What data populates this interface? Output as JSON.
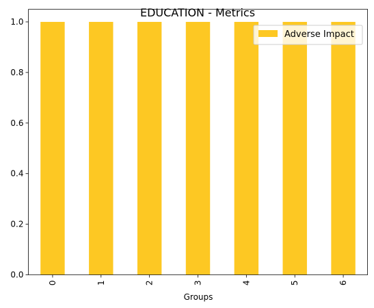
{
  "chart_data": {
    "type": "bar",
    "title": "EDUCATION - Metrics",
    "xlabel": "Groups",
    "ylabel": "",
    "categories": [
      "0",
      "1",
      "2",
      "3",
      "4",
      "5",
      "6"
    ],
    "series": [
      {
        "name": "Adverse Impact",
        "values": [
          1.0,
          1.0,
          1.0,
          1.0,
          1.0,
          1.0,
          1.0
        ]
      }
    ],
    "ylim": [
      0,
      1.05
    ],
    "yticks": [
      "0.0",
      "0.2",
      "0.4",
      "0.6",
      "0.8",
      "1.0"
    ],
    "ytick_values": [
      0.0,
      0.2,
      0.4,
      0.6,
      0.8,
      1.0
    ],
    "legend_position": "top-right",
    "grid": false,
    "colors": {
      "bar": "#fdc823"
    }
  }
}
